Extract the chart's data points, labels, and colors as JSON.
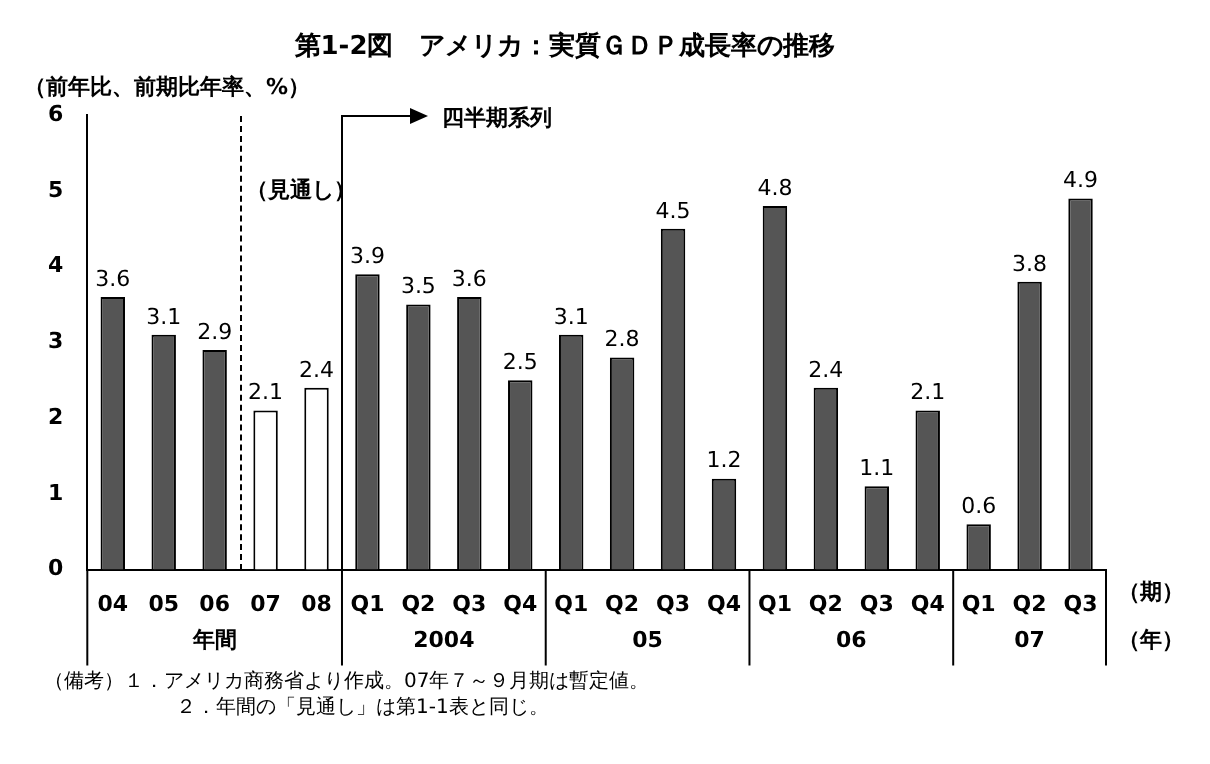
{
  "chart_data": {
    "type": "bar",
    "title": "第1-2図　アメリカ：実質ＧＤＰ成長率の推移",
    "ylabel": "（前年比、前期比年率、%）",
    "categories": [
      "04",
      "05",
      "06",
      "07",
      "08",
      "Q1",
      "Q2",
      "Q3",
      "Q4",
      "Q1",
      "Q2",
      "Q3",
      "Q4",
      "Q1",
      "Q2",
      "Q3",
      "Q4",
      "Q1",
      "Q2",
      "Q3"
    ],
    "values": [
      3.6,
      3.1,
      2.9,
      2.1,
      2.4,
      3.9,
      3.5,
      3.6,
      2.5,
      3.1,
      2.8,
      4.5,
      1.2,
      4.8,
      2.4,
      1.1,
      2.1,
      0.6,
      3.8,
      4.9
    ],
    "colors": [
      "#555555",
      "#555555",
      "#555555",
      "#ffffff",
      "#ffffff",
      "#555555",
      "#555555",
      "#555555",
      "#555555",
      "#555555",
      "#555555",
      "#555555",
      "#555555",
      "#555555",
      "#555555",
      "#555555",
      "#555555",
      "#555555",
      "#555555",
      "#555555"
    ],
    "ylim": [
      0,
      6
    ],
    "yticks": [
      0,
      1,
      2,
      3,
      4,
      5,
      6
    ],
    "grid": false,
    "legend": false,
    "data_labels": true,
    "annotations": [
      "年間",
      "2004",
      "05",
      "06",
      "07",
      "（期）",
      "（年）",
      "四半期系列",
      "（見通し）",
      "（備考）１．アメリカ商務省より作成。07年７～９月期は暫定値。",
      "２．年間の「見通し」は第1-1表と同じ。"
    ]
  }
}
